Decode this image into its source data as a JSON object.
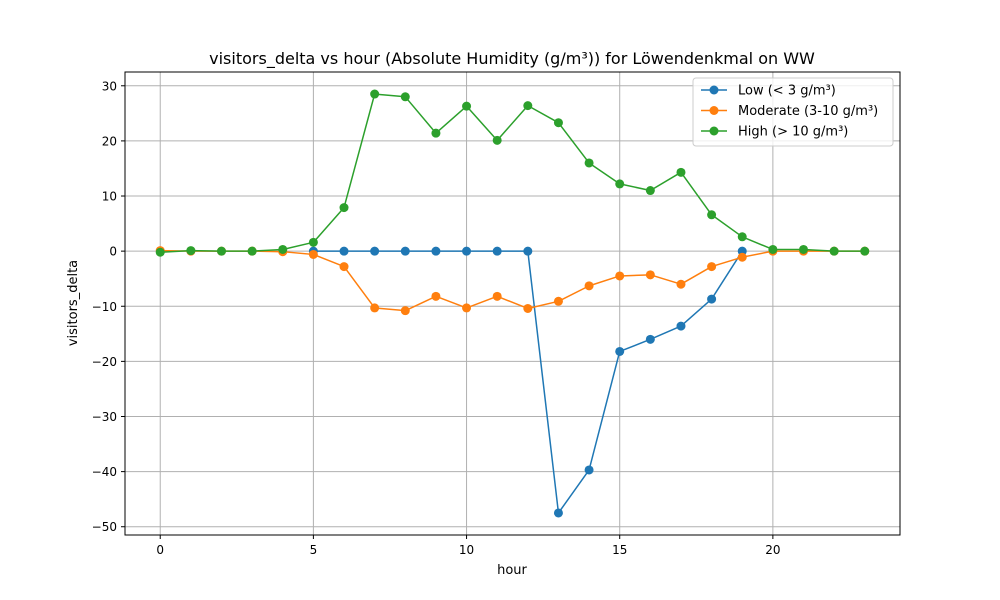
{
  "chart_data": {
    "type": "line",
    "title": "visitors_delta vs hour (Absolute Humidity (g/m³)) for Löwendenkmal on WW",
    "xlabel": "hour",
    "ylabel": "visitors_delta",
    "xlim": [
      -1.15,
      24.15
    ],
    "ylim": [
      -51.5,
      32.5
    ],
    "xticks": [
      0,
      5,
      10,
      15,
      20
    ],
    "yticks": [
      -50,
      -40,
      -30,
      -20,
      -10,
      0,
      10,
      20,
      30
    ],
    "grid": true,
    "legend_position": "top-right",
    "x": [
      0,
      1,
      2,
      3,
      4,
      5,
      6,
      7,
      8,
      9,
      10,
      11,
      12,
      13,
      14,
      15,
      16,
      17,
      18,
      19,
      20,
      21,
      22,
      23
    ],
    "series": [
      {
        "name": "Low (< 3 g/m³)",
        "color": "#1f77b4",
        "x": [
          5,
          6,
          7,
          8,
          9,
          10,
          11,
          12,
          13,
          14,
          15,
          16,
          17,
          18,
          19
        ],
        "values": [
          0,
          0,
          0,
          0,
          0,
          0,
          0,
          0,
          -47.5,
          -39.7,
          -18.2,
          -16.0,
          -13.6,
          -8.7,
          0
        ]
      },
      {
        "name": "Moderate (3-10 g/m³)",
        "color": "#ff7f0e",
        "x": [
          0,
          1,
          2,
          3,
          4,
          5,
          6,
          7,
          8,
          9,
          10,
          11,
          12,
          13,
          14,
          15,
          16,
          17,
          18,
          19,
          20,
          21,
          22,
          23
        ],
        "values": [
          0.1,
          0,
          0,
          0,
          -0.1,
          -0.6,
          -2.8,
          -10.3,
          -10.8,
          -8.2,
          -10.3,
          -8.2,
          -10.4,
          -9.1,
          -6.3,
          -4.5,
          -4.3,
          -6.0,
          -2.8,
          -1.1,
          0,
          0,
          0,
          0
        ]
      },
      {
        "name": "High (> 10 g/m³)",
        "color": "#2ca02c",
        "x": [
          0,
          1,
          2,
          3,
          4,
          5,
          6,
          7,
          8,
          9,
          10,
          11,
          12,
          13,
          14,
          15,
          16,
          17,
          18,
          19,
          20,
          21,
          22,
          23
        ],
        "values": [
          -0.2,
          0.1,
          0,
          0,
          0.3,
          1.6,
          7.9,
          28.5,
          28.0,
          21.4,
          26.3,
          20.1,
          26.4,
          23.3,
          16.0,
          12.2,
          11.0,
          14.3,
          6.6,
          2.6,
          0.3,
          0.3,
          0,
          0
        ]
      }
    ]
  }
}
